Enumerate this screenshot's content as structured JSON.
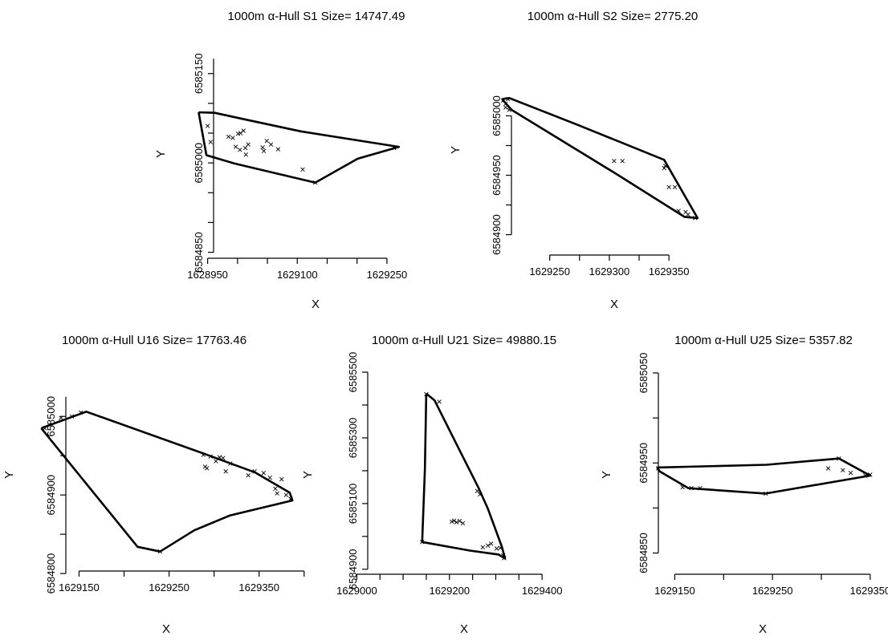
{
  "colors": {
    "background": "#ffffff",
    "ink": "#000000"
  },
  "chart_data": [
    {
      "type": "scatter",
      "title": "1000m α-Hull  S1  Size= 14747.49",
      "xlabel": "X",
      "ylabel": "Y",
      "xlim": [
        1628925,
        1629285
      ],
      "ylim": [
        6584840,
        6585190
      ],
      "xticks": [
        1628950,
        1629000,
        1629050,
        1629100,
        1629150,
        1629200,
        1629250
      ],
      "xtick_labels": [
        "1628950",
        "",
        "",
        "1629100",
        "",
        "",
        "1629250"
      ],
      "yticks": [
        6584850,
        6584900,
        6584950,
        6585000,
        6585050,
        6585100,
        6585150
      ],
      "ytick_labels": [
        "6584850",
        "",
        "",
        "6585000",
        "",
        "",
        "6585150"
      ],
      "hull": [
        [
          1628935,
          6585085
        ],
        [
          1628962,
          6585084
        ],
        [
          1629008,
          6585074
        ],
        [
          1629106,
          6585053
        ],
        [
          1629270,
          6585027
        ],
        [
          1629201,
          6585007
        ],
        [
          1629130,
          6584967
        ],
        [
          1628995,
          6584999
        ],
        [
          1628948,
          6585013
        ],
        [
          1628935,
          6585085
        ]
      ],
      "points": [
        [
          1628950,
          6585062
        ],
        [
          1628955,
          6585035
        ],
        [
          1628985,
          6585044
        ],
        [
          1628992,
          6585042
        ],
        [
          1629001,
          6585049
        ],
        [
          1629005,
          6585050
        ],
        [
          1629010,
          6585054
        ],
        [
          1628997,
          6585027
        ],
        [
          1629004,
          6585022
        ],
        [
          1629014,
          6585014
        ],
        [
          1629013,
          6585025
        ],
        [
          1629018,
          6585031
        ],
        [
          1629042,
          6585026
        ],
        [
          1629044,
          6585020
        ],
        [
          1629049,
          6585037
        ],
        [
          1629056,
          6585031
        ],
        [
          1629068,
          6585023
        ],
        [
          1629109,
          6584989
        ],
        [
          1629130,
          6584967
        ],
        [
          1629262,
          6585025
        ]
      ]
    },
    {
      "type": "scatter",
      "title": "1000m α-Hull  S2  Size= 2775.20",
      "xlabel": "X",
      "ylabel": "Y",
      "xlim": [
        1629195,
        1629395
      ],
      "ylim": [
        6584895,
        6585030
      ],
      "xticks": [
        1629250,
        1629275,
        1629300,
        1629325,
        1629350
      ],
      "xtick_labels": [
        "1629250",
        "",
        "1629300",
        "",
        "1629350"
      ],
      "yticks": [
        6584900,
        6584925,
        6584950,
        6584975,
        6585000
      ],
      "ytick_labels": [
        "6584900",
        "",
        "6584950",
        "",
        "6585000"
      ],
      "hull": [
        [
          1629210,
          6585014
        ],
        [
          1629216,
          6585015
        ],
        [
          1629272,
          6584993
        ],
        [
          1629346,
          6584963
        ],
        [
          1629374,
          6584914
        ],
        [
          1629363,
          6584915
        ],
        [
          1629306,
          6584951
        ],
        [
          1629218,
          6585005
        ],
        [
          1629210,
          6585014
        ]
      ],
      "points": [
        [
          1629211,
          6585013
        ],
        [
          1629213,
          6585010
        ],
        [
          1629213,
          6585007
        ],
        [
          1629215,
          6585014
        ],
        [
          1629216,
          6585005
        ],
        [
          1629304,
          6584962
        ],
        [
          1629311,
          6584962
        ],
        [
          1629346,
          6584956
        ],
        [
          1629347,
          6584958
        ],
        [
          1629350,
          6584940
        ],
        [
          1629355,
          6584940
        ],
        [
          1629358,
          6584920
        ],
        [
          1629364,
          6584919
        ],
        [
          1629366,
          6584917
        ],
        [
          1629372,
          6584914
        ]
      ]
    },
    {
      "type": "scatter",
      "title": "1000m α-Hull  U16  Size=  17763.46",
      "xlabel": "X",
      "ylabel": "Y",
      "xlim": [
        1629105,
        1629410
      ],
      "ylim": [
        6584795,
        6585038
      ],
      "xticks": [
        1629150,
        1629200,
        1629250,
        1629300,
        1629350,
        1629400
      ],
      "xtick_labels": [
        "1629150",
        "",
        "1629250",
        "",
        "1629350",
        ""
      ],
      "yticks": [
        6584800,
        6584850,
        6584900,
        6584950,
        6585000
      ],
      "ytick_labels": [
        "6584800",
        "",
        "6584900",
        "",
        "6585000"
      ],
      "hull": [
        [
          1629108,
          6584985
        ],
        [
          1629158,
          6585006
        ],
        [
          1629290,
          6584952
        ],
        [
          1629345,
          6584929
        ],
        [
          1629384,
          6584903
        ],
        [
          1629387,
          6584893
        ],
        [
          1629318,
          6584874
        ],
        [
          1629278,
          6584855
        ],
        [
          1629240,
          6584828
        ],
        [
          1629215,
          6584834
        ],
        [
          1629108,
          6584985
        ]
      ],
      "points": [
        [
          1629112,
          6584985
        ],
        [
          1629130,
          6584998
        ],
        [
          1629142,
          6585000
        ],
        [
          1629152,
          6585005
        ],
        [
          1629288,
          6584951
        ],
        [
          1629296,
          6584949
        ],
        [
          1629302,
          6584943
        ],
        [
          1629306,
          6584948
        ],
        [
          1629310,
          6584947
        ],
        [
          1629318,
          6584940
        ],
        [
          1629345,
          6584930
        ],
        [
          1629355,
          6584928
        ],
        [
          1629362,
          6584922
        ],
        [
          1629368,
          6584908
        ],
        [
          1629370,
          6584902
        ],
        [
          1629380,
          6584900
        ],
        [
          1629385,
          6584895
        ],
        [
          1629290,
          6584936
        ],
        [
          1629292,
          6584934
        ],
        [
          1629313,
          6584930
        ],
        [
          1629338,
          6584925
        ],
        [
          1629375,
          6584920
        ],
        [
          1629240,
          6584828
        ]
      ]
    },
    {
      "type": "scatter",
      "title": "1000m α-Hull  U21  Size= 49880.15",
      "xlabel": "X",
      "ylabel": "Y",
      "xlim": [
        1628975,
        1629450
      ],
      "ylim": [
        6584880,
        6585505
      ],
      "xticks": [
        1629000,
        1629050,
        1629100,
        1629150,
        1629200,
        1629250,
        1629300,
        1629350,
        1629400
      ],
      "xtick_labels": [
        "1629000",
        "",
        "",
        "",
        "1629200",
        "",
        "",
        "",
        "1629400"
      ],
      "yticks": [
        6584900,
        6585000,
        6585100,
        6585200,
        6585300,
        6585400,
        6585500
      ],
      "ytick_labels": [
        "6584900",
        "",
        "6585100",
        "",
        "6585300",
        "",
        "6585500"
      ],
      "hull": [
        [
          1629150,
          6585435
        ],
        [
          1629168,
          6585414
        ],
        [
          1629212,
          6585290
        ],
        [
          1629262,
          6585150
        ],
        [
          1629283,
          6585084
        ],
        [
          1629313,
          6584969
        ],
        [
          1629320,
          6584933
        ],
        [
          1629306,
          6584945
        ],
        [
          1629244,
          6584957
        ],
        [
          1629141,
          6584983
        ],
        [
          1629147,
          6585204
        ],
        [
          1629150,
          6585435
        ]
      ],
      "points": [
        [
          1629150,
          6585433
        ],
        [
          1629178,
          6585410
        ],
        [
          1629260,
          6585138
        ],
        [
          1629266,
          6585128
        ],
        [
          1629205,
          6585045
        ],
        [
          1629210,
          6585048
        ],
        [
          1629215,
          6585043
        ],
        [
          1629222,
          6585047
        ],
        [
          1629229,
          6585040
        ],
        [
          1629272,
          6584967
        ],
        [
          1629283,
          6584972
        ],
        [
          1629290,
          6584978
        ],
        [
          1629302,
          6584963
        ],
        [
          1629310,
          6584965
        ],
        [
          1629316,
          6584942
        ],
        [
          1629141,
          6584983
        ],
        [
          1629318,
          6584934
        ]
      ]
    },
    {
      "type": "scatter",
      "title": "1000m α-Hull  U25  Size= 5357.82",
      "xlabel": "X",
      "ylabel": "Y",
      "xlim": [
        1629125,
        1629360
      ],
      "ylim": [
        6584830,
        6585050
      ],
      "xticks": [
        1629150,
        1629200,
        1629250,
        1629300,
        1629350
      ],
      "xtick_labels": [
        "1629150",
        "",
        "1629250",
        "",
        "1629350"
      ],
      "yticks": [
        6584850,
        6584900,
        6584950,
        6585000,
        6585050
      ],
      "ytick_labels": [
        "6584850",
        "",
        "6584950",
        "",
        "6585050"
      ],
      "hull": [
        [
          1629132,
          6584945
        ],
        [
          1629244,
          6584948
        ],
        [
          1629318,
          6584955
        ],
        [
          1629350,
          6584936
        ],
        [
          1629243,
          6584916
        ],
        [
          1629164,
          6584922
        ],
        [
          1629134,
          6584941
        ],
        [
          1629132,
          6584945
        ]
      ],
      "points": [
        [
          1629133,
          6584944
        ],
        [
          1629158,
          6584923
        ],
        [
          1629167,
          6584922
        ],
        [
          1629176,
          6584922
        ],
        [
          1629243,
          6584916
        ],
        [
          1629307,
          6584944
        ],
        [
          1629318,
          6584955
        ],
        [
          1629322,
          6584942
        ],
        [
          1629330,
          6584939
        ],
        [
          1629345,
          6584936
        ],
        [
          1629350,
          6584937
        ]
      ]
    }
  ]
}
